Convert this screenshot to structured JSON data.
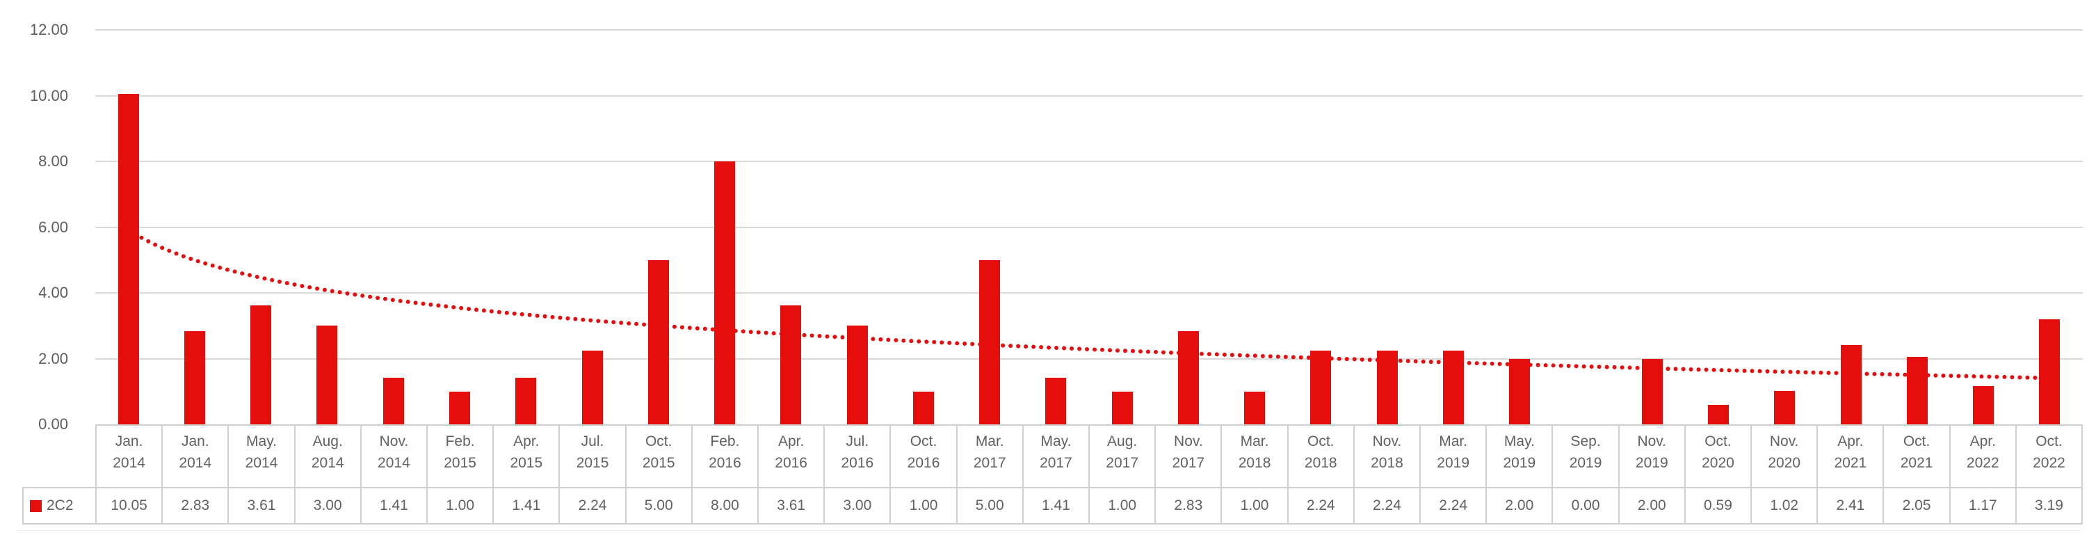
{
  "page": {
    "background": "#ffffff"
  },
  "chart_data": {
    "type": "bar",
    "title": "",
    "grid": true,
    "legend_position": "data-table-left",
    "ylim": [
      0,
      12
    ],
    "ytick_step": 2,
    "y_ticks": [
      {
        "value": 12,
        "label": "12.00"
      },
      {
        "value": 10,
        "label": "10.00"
      },
      {
        "value": 8,
        "label": "8.00"
      },
      {
        "value": 6,
        "label": "6.00"
      },
      {
        "value": 4,
        "label": "4.00"
      },
      {
        "value": 2,
        "label": "2.00"
      },
      {
        "value": 0,
        "label": "0.00"
      }
    ],
    "categories": [
      {
        "month": "Jan.",
        "year": "2014"
      },
      {
        "month": "Jan.",
        "year": "2014"
      },
      {
        "month": "May.",
        "year": "2014"
      },
      {
        "month": "Aug.",
        "year": "2014"
      },
      {
        "month": "Nov.",
        "year": "2014"
      },
      {
        "month": "Feb.",
        "year": "2015"
      },
      {
        "month": "Apr.",
        "year": "2015"
      },
      {
        "month": "Jul.",
        "year": "2015"
      },
      {
        "month": "Oct.",
        "year": "2015"
      },
      {
        "month": "Feb.",
        "year": "2016"
      },
      {
        "month": "Apr.",
        "year": "2016"
      },
      {
        "month": "Jul.",
        "year": "2016"
      },
      {
        "month": "Oct.",
        "year": "2016"
      },
      {
        "month": "Mar.",
        "year": "2017"
      },
      {
        "month": "May.",
        "year": "2017"
      },
      {
        "month": "Aug.",
        "year": "2017"
      },
      {
        "month": "Nov.",
        "year": "2017"
      },
      {
        "month": "Mar.",
        "year": "2018"
      },
      {
        "month": "Oct.",
        "year": "2018"
      },
      {
        "month": "Nov.",
        "year": "2018"
      },
      {
        "month": "Mar.",
        "year": "2019"
      },
      {
        "month": "May.",
        "year": "2019"
      },
      {
        "month": "Sep.",
        "year": "2019"
      },
      {
        "month": "Nov.",
        "year": "2019"
      },
      {
        "month": "Oct.",
        "year": "2020"
      },
      {
        "month": "Nov.",
        "year": "2020"
      },
      {
        "month": "Apr.",
        "year": "2021"
      },
      {
        "month": "Oct.",
        "year": "2021"
      },
      {
        "month": "Apr.",
        "year": "2022"
      },
      {
        "month": "Oct.",
        "year": "2022"
      }
    ],
    "series": [
      {
        "name": "2C2",
        "color": "#e60d0d",
        "values": [
          10.05,
          2.83,
          3.61,
          3.0,
          1.41,
          1.0,
          1.41,
          2.24,
          5.0,
          8.0,
          3.61,
          3.0,
          1.0,
          5.0,
          1.41,
          1.0,
          2.83,
          1.0,
          2.24,
          2.24,
          2.24,
          2.0,
          0.0,
          2.0,
          0.59,
          1.02,
          2.41,
          2.05,
          1.17,
          3.19
        ],
        "value_labels": [
          "10.05",
          "2.83",
          "3.61",
          "3.00",
          "1.41",
          "1.00",
          "1.41",
          "2.24",
          "5.00",
          "8.00",
          "3.61",
          "3.00",
          "1.00",
          "5.00",
          "1.41",
          "1.00",
          "2.83",
          "1.00",
          "2.24",
          "2.24",
          "2.24",
          "2.00",
          "0.00",
          "2.00",
          "0.59",
          "1.02",
          "2.41",
          "2.05",
          "1.17",
          "3.19"
        ]
      }
    ],
    "trendline": {
      "type": "logarithmic",
      "style": "dotted",
      "color": "#e60d0d",
      "a": 5.916,
      "b": -1.325,
      "formula": "y = 5.916 - 1.325*ln(x)"
    },
    "data_table": {
      "shown": true,
      "series_label": "2C2"
    },
    "colors": {
      "bar": "#e60d0d",
      "trendline": "#e60d0d",
      "axis_text": "#5d5d5d",
      "table_text": "#616161",
      "gridline": "#dadada",
      "table_border": "#cfcfcf"
    }
  }
}
